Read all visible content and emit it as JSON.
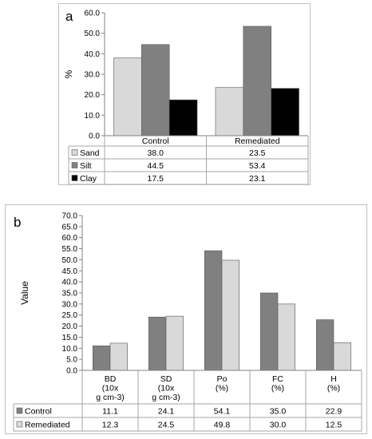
{
  "chart_data": [
    {
      "type": "bar",
      "panel_label": "a",
      "ylabel": "%",
      "ylim": [
        0,
        60
      ],
      "yticks": [
        "0.0",
        "10.0",
        "20.0",
        "30.0",
        "40.0",
        "50.0",
        "60.0"
      ],
      "categories": [
        "Control",
        "Remediated"
      ],
      "series": [
        {
          "name": "Sand",
          "values": [
            38.0,
            23.5
          ],
          "labels": [
            "38.0",
            "23.5"
          ],
          "color": "#d9d9d9"
        },
        {
          "name": "Silt",
          "values": [
            44.5,
            53.4
          ],
          "labels": [
            "44.5",
            "53.4"
          ],
          "color": "#808080"
        },
        {
          "name": "Clay",
          "values": [
            17.5,
            23.1
          ],
          "labels": [
            "17.5",
            "23.1"
          ],
          "color": "#000000"
        }
      ],
      "grid": false,
      "legend": "data-table"
    },
    {
      "type": "bar",
      "panel_label": "b",
      "ylabel": "Value",
      "ylim": [
        0,
        70
      ],
      "yticks": [
        "0.0",
        "5.0",
        "10.0",
        "15.0",
        "20.0",
        "25.0",
        "30.0",
        "35.0",
        "40.0",
        "45.0",
        "50.0",
        "55.0",
        "60.0",
        "65.0",
        "70.0"
      ],
      "categories": [
        [
          "BD",
          "(10x",
          "g cm-3)"
        ],
        [
          "SD",
          "(10x",
          "g cm-3)"
        ],
        [
          "Po",
          "(%)"
        ],
        [
          "FC",
          "(%)"
        ],
        [
          "H",
          "(%)"
        ]
      ],
      "series": [
        {
          "name": "Control",
          "values": [
            11.1,
            24.1,
            54.1,
            35.0,
            22.9
          ],
          "labels": [
            "11.1",
            "24.1",
            "54.1",
            "35.0",
            "22.9"
          ],
          "color": "#808080"
        },
        {
          "name": "Remediated",
          "values": [
            12.3,
            24.5,
            49.8,
            30.0,
            12.5
          ],
          "labels": [
            "12.3",
            "24.5",
            "49.8",
            "30.0",
            "12.5"
          ],
          "color": "#d9d9d9"
        }
      ],
      "grid": false,
      "legend": "data-table"
    }
  ]
}
